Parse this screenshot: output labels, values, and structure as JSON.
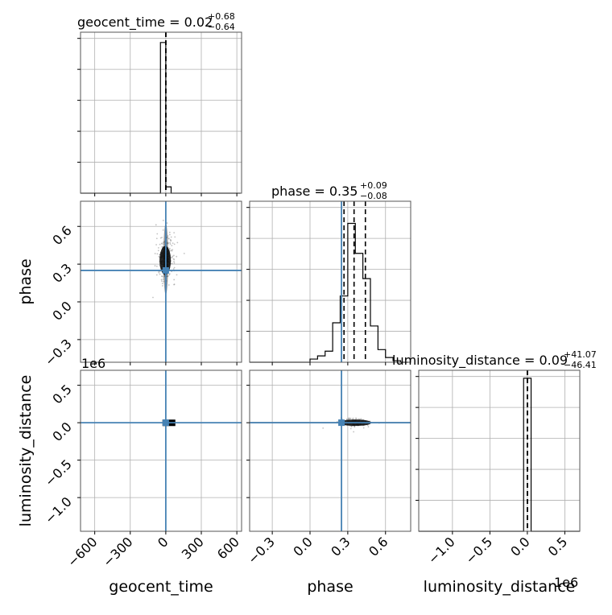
{
  "colors": {
    "truth": "#4682b4",
    "frame": "#555555",
    "grid": "#b0b0b0",
    "line": "#000000",
    "sample": "#9a9a9a"
  },
  "labels": {
    "geocent_time_axis": "geocent_time",
    "phase_axis": "phase",
    "luminosity_distance_axis": "luminosity_distance",
    "offset_ld_y": "1e6",
    "offset_ld_x": "1e6"
  },
  "titles": {
    "geocent_time": {
      "main": "geocent_time = 0.02",
      "sup": "+0.68",
      "sub": "−0.64"
    },
    "phase": {
      "main": "phase = 0.35",
      "sup": "+0.09",
      "sub": "−0.08"
    },
    "luminosity_distance": {
      "main": "luminosity_distance = 0.09",
      "sup": "+41.07",
      "sub": "−46.41"
    }
  },
  "chart_data": {
    "type": "corner",
    "parameters": [
      "geocent_time",
      "phase",
      "luminosity_distance"
    ],
    "truths": {
      "geocent_time": 0,
      "phase": 0.25,
      "luminosity_distance": 0
    },
    "ranges": {
      "geocent_time": [
        -720,
        640
      ],
      "phase": [
        -0.48,
        0.8
      ],
      "luminosity_distance": [
        -1.45,
        0.7
      ]
    },
    "ticks": {
      "geocent_time": [
        {
          "v": -600,
          "label": "−600"
        },
        {
          "v": -300,
          "label": "−300"
        },
        {
          "v": 0,
          "label": "0"
        },
        {
          "v": 300,
          "label": "300"
        },
        {
          "v": 600,
          "label": "600"
        }
      ],
      "phase": [
        {
          "v": -0.3,
          "label": "−0.3"
        },
        {
          "v": 0.0,
          "label": "0.0"
        },
        {
          "v": 0.3,
          "label": "0.3"
        },
        {
          "v": 0.6,
          "label": "0.6"
        }
      ],
      "luminosity_distance": [
        {
          "v": -1.0,
          "label": "−1.0"
        },
        {
          "v": -0.5,
          "label": "−0.5"
        },
        {
          "v": 0.0,
          "label": "0.0"
        },
        {
          "v": 0.5,
          "label": "0.5"
        }
      ]
    },
    "hist_geocent_time": {
      "edges": [
        -720,
        -675,
        -630,
        -585,
        -540,
        -495,
        -450,
        -405,
        -360,
        -315,
        -270,
        -225,
        -180,
        -135,
        -90,
        -45,
        0,
        45,
        90,
        135,
        180,
        225,
        270,
        315,
        360,
        405,
        450,
        495,
        540,
        585,
        630
      ],
      "counts": [
        0,
        0,
        0,
        0,
        0,
        0,
        0,
        0,
        0,
        0,
        0,
        0,
        0,
        0,
        0,
        0.955,
        0.04,
        0,
        0,
        0,
        0,
        0,
        0,
        0,
        0,
        0,
        0,
        0,
        0,
        0
      ],
      "quantiles": [
        -0.62,
        0.02,
        0.7
      ]
    },
    "hist_phase": {
      "edges": [
        -0.48,
        -0.42,
        -0.36,
        -0.3,
        -0.24,
        -0.18,
        -0.12,
        -0.06,
        0.0,
        0.06,
        0.12,
        0.18,
        0.24,
        0.3,
        0.36,
        0.42,
        0.48,
        0.54,
        0.6,
        0.66,
        0.72,
        0.78
      ],
      "counts": [
        0,
        0,
        0,
        0,
        0,
        0,
        0,
        0,
        0.02,
        0.04,
        0.07,
        0.25,
        0.42,
        0.88,
        0.69,
        0.53,
        0.23,
        0.08,
        0.03,
        0.01,
        0
      ],
      "quantiles": [
        0.27,
        0.35,
        0.44
      ]
    },
    "hist_luminosity_distance": {
      "edges": [
        -1.45,
        -1.4,
        -1.35,
        -1.3,
        -1.25,
        -1.2,
        -1.15,
        -1.1,
        -1.05,
        -1.0,
        -0.95,
        -0.9,
        -0.85,
        -0.8,
        -0.75,
        -0.7,
        -0.65,
        -0.6,
        -0.55,
        -0.5,
        -0.45,
        -0.4,
        -0.35,
        -0.3,
        -0.25,
        -0.2,
        -0.15,
        -0.1,
        -0.05,
        0.0,
        0.05,
        0.1,
        0.15,
        0.2,
        0.25,
        0.3,
        0.35,
        0.4,
        0.45,
        0.5,
        0.55,
        0.6,
        0.65,
        0.7
      ],
      "counts": [
        0,
        0,
        0,
        0,
        0,
        0,
        0,
        0,
        0,
        0,
        0,
        0,
        0,
        0,
        0,
        0,
        0,
        0,
        0,
        0,
        0,
        0,
        0,
        0,
        0,
        0,
        0,
        0,
        0.97,
        0.97,
        0,
        0,
        0,
        0,
        0,
        0,
        0,
        0,
        0,
        0,
        0,
        0,
        0
      ],
      "quantiles": [
        -4.64e-05,
        9e-08,
        4.11e-05
      ]
    }
  }
}
